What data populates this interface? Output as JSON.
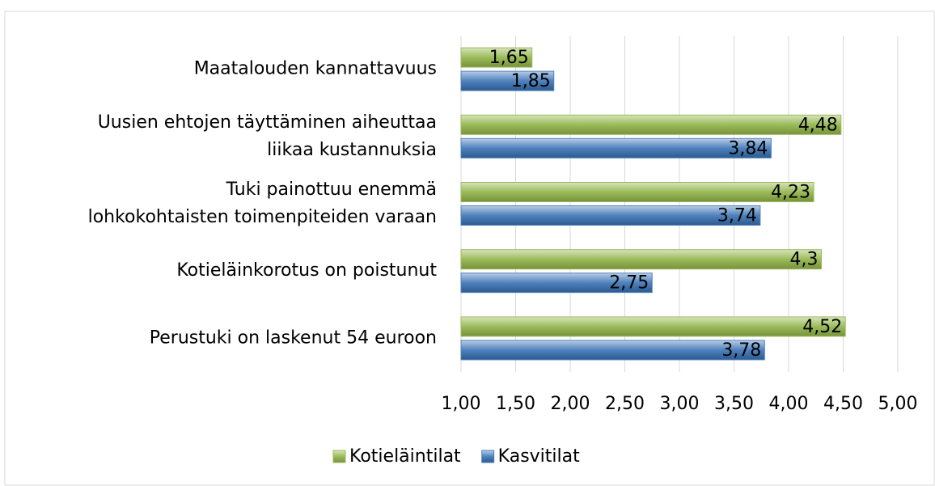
{
  "chart_data": {
    "type": "hbar",
    "categories": [
      "Maatalouden kannattavuus",
      "Uusien ehtojen täyttäminen aiheuttaa\nliikaa kustannuksia",
      "Tuki painottuu enemmä\nlohkokohtaisten toimenpiteiden varaan",
      "Kotieläinkorotus on poistunut",
      "Perustuki on laskenut 54 euroon"
    ],
    "series": [
      {
        "name": "Kotieläintilat",
        "color": "#9bbb59",
        "values": [
          1.65,
          4.48,
          4.23,
          4.3,
          4.52
        ],
        "value_labels": [
          "1,65",
          "4,48",
          "4,23",
          "4,3",
          "4,52"
        ]
      },
      {
        "name": "Kasvitilat",
        "color": "#4f81bd",
        "values": [
          1.85,
          3.84,
          3.74,
          2.75,
          3.78
        ],
        "value_labels": [
          "1,85",
          "3,84",
          "3,74",
          "2,75",
          "3,78"
        ]
      }
    ],
    "xlim": [
      1,
      5
    ],
    "xticks": [
      {
        "value": 1,
        "label": "1,00"
      },
      {
        "value": 1.5,
        "label": "1,50"
      },
      {
        "value": 2,
        "label": "2,00"
      },
      {
        "value": 2.5,
        "label": "2,50"
      },
      {
        "value": 3,
        "label": "3,00"
      },
      {
        "value": 3.5,
        "label": "3,50"
      },
      {
        "value": 4,
        "label": "4,00"
      },
      {
        "value": 4.5,
        "label": "4,50"
      },
      {
        "value": 5,
        "label": "5,00"
      }
    ],
    "grid": true,
    "legend": "bottom"
  }
}
